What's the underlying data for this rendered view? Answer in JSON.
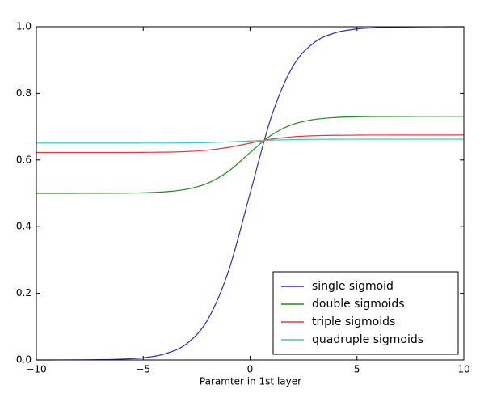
{
  "chart_data": {
    "type": "line",
    "x_label": "Paramter in 1st layer",
    "x": [
      -10,
      -9,
      -8,
      -7,
      -6,
      -5,
      -4,
      -3,
      -2,
      -1,
      0,
      1,
      2,
      3,
      4,
      5,
      6,
      7,
      8,
      9,
      10
    ],
    "series": [
      {
        "name": "single sigmoid",
        "color": "#2b2bd6",
        "values": [
          5e-05,
          0.00012,
          0.00034,
          0.00091,
          0.0025,
          0.0067,
          0.018,
          0.0474,
          0.1192,
          0.2689,
          0.5,
          0.7311,
          0.8808,
          0.9526,
          0.982,
          0.9933,
          0.9975,
          0.9991,
          0.9997,
          0.9999,
          1.0
        ]
      },
      {
        "name": "double sigmoids",
        "color": "#1e8a1e",
        "values": [
          0.5,
          0.5,
          0.5001,
          0.5002,
          0.5006,
          0.5017,
          0.5045,
          0.5119,
          0.5298,
          0.5668,
          0.6225,
          0.675,
          0.707,
          0.7216,
          0.7275,
          0.7298,
          0.7306,
          0.7309,
          0.731,
          0.7311,
          0.7311
        ]
      },
      {
        "name": "triple sigmoids",
        "color": "#e8383a",
        "values": [
          0.6225,
          0.6225,
          0.6225,
          0.6225,
          0.6226,
          0.6229,
          0.6235,
          0.6253,
          0.6295,
          0.638,
          0.6508,
          0.6626,
          0.6697,
          0.673,
          0.6742,
          0.6747,
          0.6749,
          0.675,
          0.675,
          0.675,
          0.675
        ]
      },
      {
        "name": "quadruple sigmoids",
        "color": "#3cc6c6",
        "values": [
          0.6508,
          0.6508,
          0.6508,
          0.6508,
          0.6508,
          0.6509,
          0.651,
          0.6514,
          0.6524,
          0.6543,
          0.6572,
          0.6598,
          0.6614,
          0.6622,
          0.6624,
          0.6625,
          0.6626,
          0.6626,
          0.6626,
          0.6626,
          0.6626
        ]
      }
    ],
    "xlim": [
      -10,
      10
    ],
    "xticks": [
      {
        "value": -10,
        "label": "−10"
      },
      {
        "value": -5,
        "label": "−5"
      },
      0,
      5,
      10
    ],
    "ylim": [
      0,
      1
    ],
    "yticks": [
      {
        "value": 0,
        "label": "0.0"
      },
      0.2,
      0.4,
      0.6,
      0.8,
      {
        "value": 1,
        "label": "1.0"
      }
    ],
    "legend": "lower right"
  }
}
